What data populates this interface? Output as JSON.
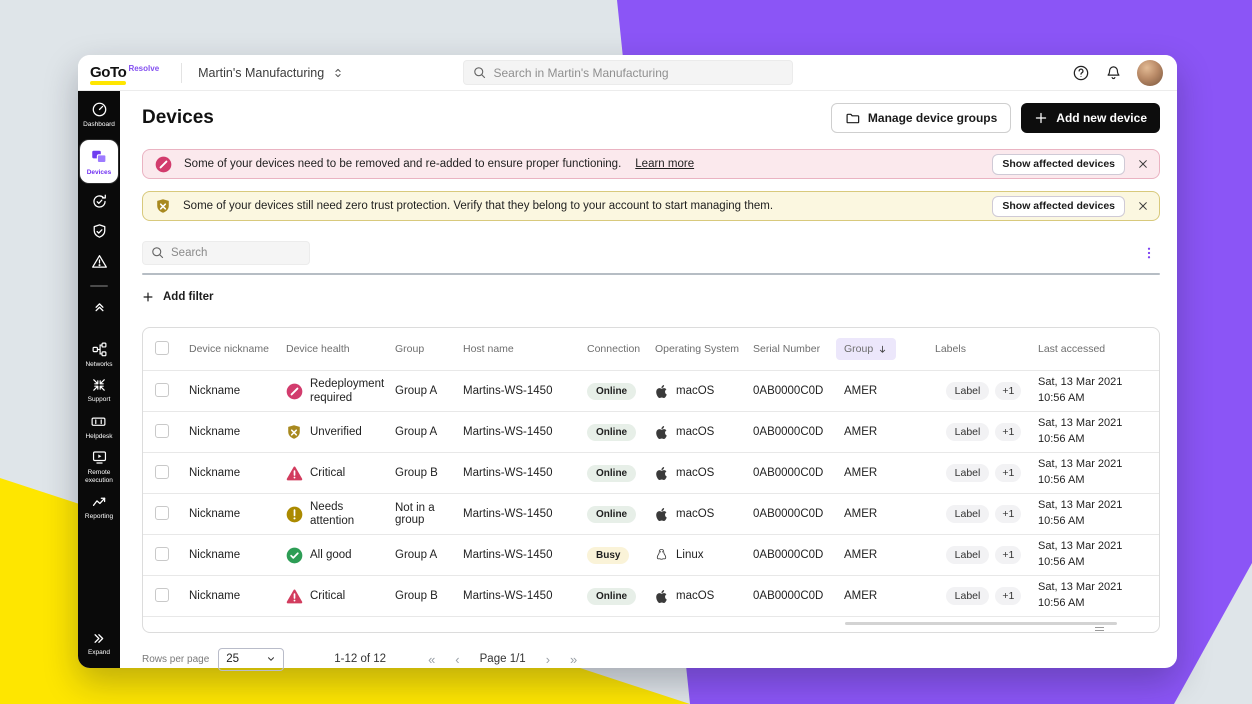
{
  "background": {
    "base": "#dfe5e9",
    "purple": "#8b55f6",
    "yellow": "#fee600"
  },
  "topbar": {
    "logo_brand": "GoTo",
    "logo_product": "Resolve",
    "org_name": "Martin's Manufacturing",
    "search_placeholder": "Search in Martin's Manufacturing"
  },
  "sidebar": {
    "dashboard": "Dashboard",
    "devices": "Devices",
    "networks": "Networks",
    "support": "Support",
    "helpdesk": "Helpdesk",
    "remote_execution": "Remote execution",
    "reporting": "Reporting",
    "expand": "Expand"
  },
  "page": {
    "title": "Devices",
    "manage_groups_label": "Manage device groups",
    "add_device_label": "Add new device"
  },
  "alerts": [
    {
      "text": "Some of your devices need to be removed and re-added to ensure proper functioning.",
      "link": "Learn more",
      "action": "Show affected devices"
    },
    {
      "text": "Some of your devices still need zero trust protection. Verify that they belong to your account to start managing them.",
      "action": "Show affected devices"
    }
  ],
  "toolbar": {
    "search_placeholder": "Search",
    "add_filter_label": "Add filter"
  },
  "table": {
    "headers": {
      "nickname": "Device nickname",
      "health": "Device health",
      "group": "Group",
      "host": "Host name",
      "connection": "Connection",
      "os": "Operating System",
      "serial": "Serial Number",
      "group_sorted": "Group",
      "labels": "Labels",
      "accessed": "Last accessed"
    },
    "rows": [
      {
        "nickname": "Nickname",
        "health_icon": "slash-circle",
        "health": "Redeployment required",
        "group": "Group A",
        "host": "Martins-WS-1450",
        "connection": "Online",
        "os_icon": "apple",
        "os": "macOS",
        "serial": "0AB0000C0D",
        "group2": "AMER",
        "label": "Label",
        "label_more": "+1",
        "date": "Sat, 13 Mar 2021",
        "time": "10:56 AM"
      },
      {
        "nickname": "Nickname",
        "health_icon": "shield-x",
        "health": "Unverified",
        "group": "Group A",
        "host": "Martins-WS-1450",
        "connection": "Online",
        "os_icon": "apple",
        "os": "macOS",
        "serial": "0AB0000C0D",
        "group2": "AMER",
        "label": "Label",
        "label_more": "+1",
        "date": "Sat, 13 Mar 2021",
        "time": "10:56 AM"
      },
      {
        "nickname": "Nickname",
        "health_icon": "triangle-alert",
        "health": "Critical",
        "group": "Group B",
        "host": "Martins-WS-1450",
        "connection": "Online",
        "os_icon": "apple",
        "os": "macOS",
        "serial": "0AB0000C0D",
        "group2": "AMER",
        "label": "Label",
        "label_more": "+1",
        "date": "Sat, 13 Mar 2021",
        "time": "10:56 AM"
      },
      {
        "nickname": "Nickname",
        "health_icon": "circle-exclaim",
        "health": "Needs attention",
        "group": "Not in a group",
        "host": "Martins-WS-1450",
        "connection": "Online",
        "os_icon": "apple",
        "os": "macOS",
        "serial": "0AB0000C0D",
        "group2": "AMER",
        "label": "Label",
        "label_more": "+1",
        "date": "Sat, 13 Mar 2021",
        "time": "10:56 AM"
      },
      {
        "nickname": "Nickname",
        "health_icon": "circle-check",
        "health": "All good",
        "group": "Group A",
        "host": "Martins-WS-1450",
        "connection": "Busy",
        "os_icon": "linux",
        "os": "Linux",
        "serial": "0AB0000C0D",
        "group2": "AMER",
        "label": "Label",
        "label_more": "+1",
        "date": "Sat, 13 Mar 2021",
        "time": "10:56 AM"
      },
      {
        "nickname": "Nickname",
        "health_icon": "triangle-alert",
        "health": "Critical",
        "group": "Group B",
        "host": "Martins-WS-1450",
        "connection": "Online",
        "os_icon": "apple",
        "os": "macOS",
        "serial": "0AB0000C0D",
        "group2": "AMER",
        "label": "Label",
        "label_more": "+1",
        "date": "Sat, 13 Mar 2021",
        "time": "10:56 AM"
      }
    ]
  },
  "pagination": {
    "rows_per_page_label": "Rows per page",
    "rows_per_page_value": "25",
    "range": "1-12 of 12",
    "first": "«",
    "prev": "‹",
    "page": "Page 1/1",
    "next": "›",
    "last": "»"
  }
}
